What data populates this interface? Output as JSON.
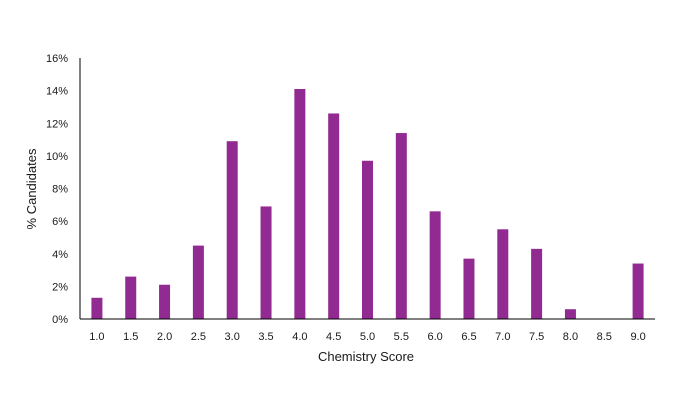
{
  "chart_data": {
    "type": "bar",
    "title": "",
    "xlabel": "Chemistry Score",
    "ylabel": "% Candidates",
    "categories": [
      "1.0",
      "1.5",
      "2.0",
      "2.5",
      "3.0",
      "3.5",
      "4.0",
      "4.5",
      "5.0",
      "5.5",
      "6.0",
      "6.5",
      "7.0",
      "7.5",
      "8.0",
      "8.5",
      "9.0"
    ],
    "values": [
      1.3,
      2.6,
      2.1,
      4.5,
      10.9,
      6.9,
      14.1,
      12.6,
      9.7,
      11.4,
      6.6,
      3.7,
      5.5,
      4.3,
      0.6,
      0.0,
      3.4
    ],
    "ylim": [
      0,
      16
    ],
    "yticks": [
      0,
      2,
      4,
      6,
      8,
      10,
      12,
      14,
      16
    ],
    "ytick_labels": [
      "0%",
      "2%",
      "4%",
      "6%",
      "8%",
      "10%",
      "12%",
      "14%",
      "16%"
    ],
    "bar_color": "#922B91",
    "grid": false,
    "legend": "none"
  }
}
